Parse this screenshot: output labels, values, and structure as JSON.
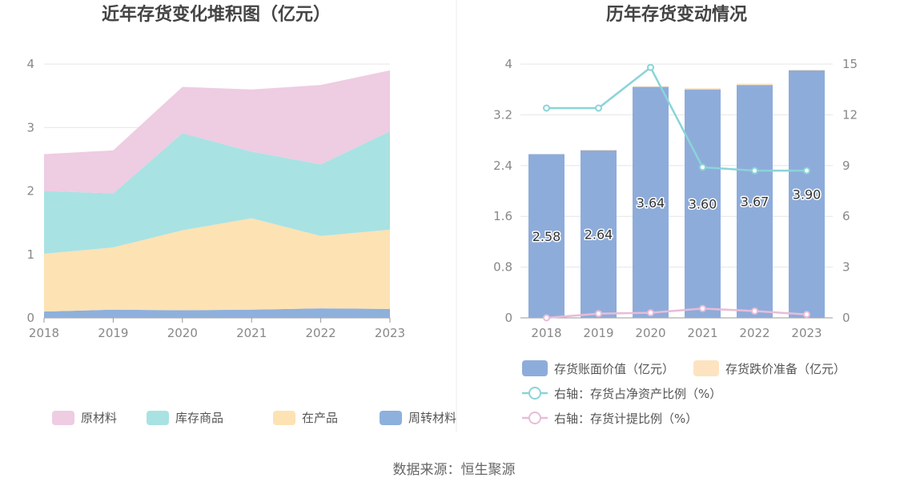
{
  "source_text": "数据来源：恒生聚源",
  "colors": {
    "raw_materials": "#eecce2",
    "finished_goods": "#a9e2e3",
    "wip": "#fde2b4",
    "revolving": "#8eb0dc",
    "bar_book": "#8eacda",
    "bar_impair": "#fde3c0",
    "line_ratio": "#8ad4d8",
    "line_provision": "#e8bcd8"
  },
  "chart_data": [
    {
      "type": "area",
      "stacked": true,
      "title": "近年存货变化堆积图（亿元）",
      "x": [
        "2018",
        "2019",
        "2020",
        "2021",
        "2022",
        "2023"
      ],
      "ylim": [
        0,
        4
      ],
      "yticks": [
        "0",
        "1",
        "2",
        "3",
        "4"
      ],
      "grid": true,
      "legend_position": "bottom",
      "series": [
        {
          "name": "周转材料",
          "color_key": "revolving",
          "values": [
            0.1,
            0.13,
            0.12,
            0.13,
            0.15,
            0.14
          ]
        },
        {
          "name": "在产品",
          "color_key": "wip",
          "values": [
            0.91,
            0.98,
            1.26,
            1.44,
            1.14,
            1.25
          ]
        },
        {
          "name": "库存商品",
          "color_key": "finished_goods",
          "values": [
            0.99,
            0.85,
            1.53,
            1.05,
            1.13,
            1.55
          ]
        },
        {
          "name": "原材料",
          "color_key": "raw_materials",
          "values": [
            0.58,
            0.68,
            0.73,
            0.98,
            1.25,
            0.96
          ]
        }
      ],
      "legend_order": [
        "原材料",
        "库存商品",
        "在产品",
        "周转材料"
      ]
    },
    {
      "type": "bar",
      "title": "历年存货变动情况",
      "categories": [
        "2018",
        "2019",
        "2020",
        "2021",
        "2022",
        "2023"
      ],
      "ylim": [
        0,
        4
      ],
      "yticks": [
        "0",
        "0.8",
        "1.6",
        "2.4",
        "3.2",
        "4"
      ],
      "y2lim": [
        0,
        15
      ],
      "y2ticks": [
        "0",
        "3",
        "6",
        "9",
        "12",
        "15"
      ],
      "grid": true,
      "legend_position": "bottom",
      "bar_series": [
        {
          "name": "存货账面价值（亿元）",
          "color_key": "bar_book",
          "values": [
            2.58,
            2.64,
            3.64,
            3.6,
            3.67,
            3.9
          ],
          "labels": [
            "2.58",
            "2.64",
            "3.64",
            "3.60",
            "3.67",
            "3.90"
          ]
        },
        {
          "name": "存货跌价准备（亿元）",
          "color_key": "bar_impair",
          "values": [
            0.0,
            0.01,
            0.01,
            0.02,
            0.02,
            0.01
          ]
        }
      ],
      "line_series": [
        {
          "name": "右轴：存货占净资产比例（%）",
          "color_key": "line_ratio",
          "values": [
            12.4,
            12.4,
            14.8,
            8.9,
            8.7,
            8.7
          ]
        },
        {
          "name": "右轴：存货计提比例（%）",
          "color_key": "line_provision",
          "values": [
            0.0,
            0.25,
            0.3,
            0.55,
            0.4,
            0.2
          ]
        }
      ]
    }
  ]
}
